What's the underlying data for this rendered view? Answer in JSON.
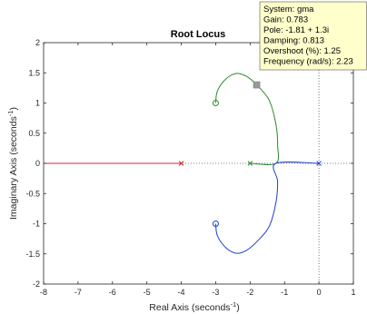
{
  "chart_data": {
    "type": "line",
    "title": "Root Locus",
    "xlabel": "Real Axis (seconds",
    "xlabel_sup": "-1",
    "xlabel_close": ")",
    "ylabel": "Imaginary Axis (seconds",
    "ylabel_sup": "-1",
    "ylabel_close": ")",
    "xlim": [
      -8,
      1
    ],
    "ylim": [
      -2,
      2
    ],
    "xticks": [
      -8,
      -7,
      -6,
      -5,
      -4,
      -3,
      -2,
      -1,
      0,
      1
    ],
    "yticks": [
      -2,
      -1.5,
      -1,
      -0.5,
      0,
      0.5,
      1,
      1.5,
      2
    ],
    "grid": false,
    "series": [
      {
        "color": "#d62728",
        "points": [
          [
            -8,
            0
          ],
          [
            -4,
            0
          ]
        ]
      },
      {
        "color": "#2a8a2a",
        "points": [
          [
            -2,
            0
          ],
          [
            -1.25,
            0
          ],
          [
            -1.2,
            0.3
          ],
          [
            -1.25,
            0.65
          ],
          [
            -1.45,
            1.05
          ],
          [
            -1.81,
            1.3
          ],
          [
            -2.1,
            1.44
          ],
          [
            -2.4,
            1.49
          ],
          [
            -2.7,
            1.4
          ],
          [
            -2.95,
            1.2
          ],
          [
            -3,
            1
          ]
        ]
      },
      {
        "color": "#1f3fd6",
        "points": [
          [
            0,
            0
          ],
          [
            -1.25,
            0
          ],
          [
            -1.2,
            -0.3
          ],
          [
            -1.25,
            -0.65
          ],
          [
            -1.45,
            -1.05
          ],
          [
            -1.81,
            -1.3
          ],
          [
            -2.1,
            -1.44
          ],
          [
            -2.4,
            -1.49
          ],
          [
            -2.7,
            -1.4
          ],
          [
            -2.95,
            -1.2
          ],
          [
            -3,
            -1
          ]
        ]
      }
    ],
    "poles": [
      [
        -4,
        0
      ],
      [
        -2,
        0
      ],
      [
        0,
        0
      ]
    ],
    "zeros": [
      [
        -3,
        1
      ],
      [
        -3,
        -1
      ]
    ],
    "selected_point": [
      -1.81,
      1.3
    ],
    "datatip": {
      "lines": [
        "System: gma",
        "Gain: 0.783",
        "Pole: -1.81 + 1.3i",
        "Damping: 0.813",
        "Overshoot (%): 1.25",
        "Frequency (rad/s): 2.23"
      ],
      "background": "#ffffcc"
    }
  }
}
